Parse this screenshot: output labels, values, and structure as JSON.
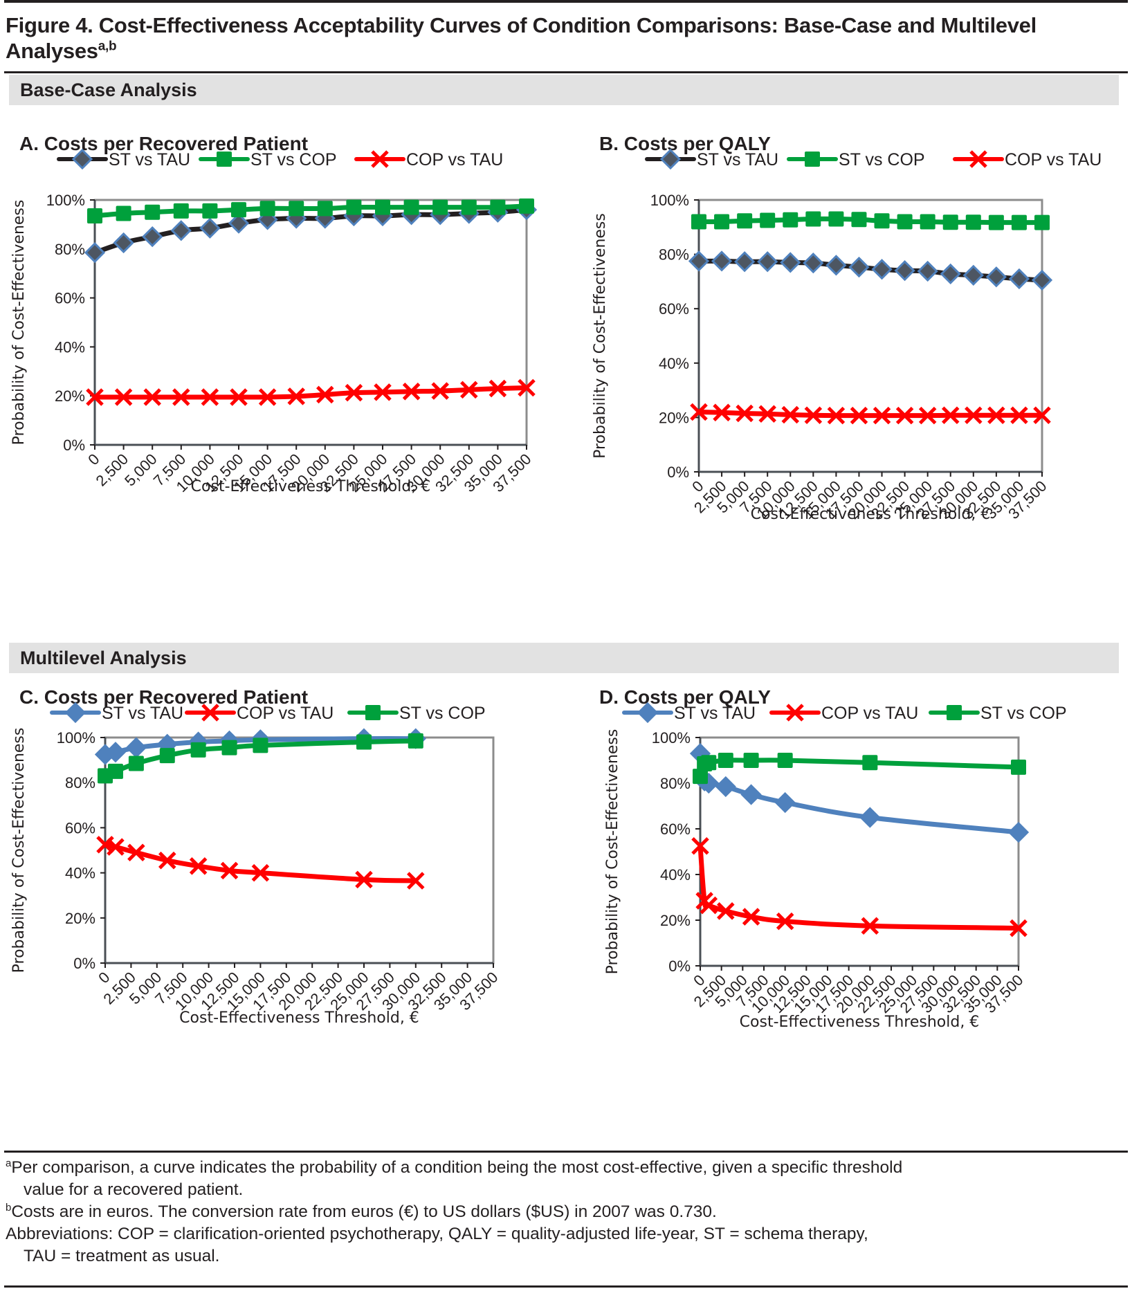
{
  "figure": {
    "title": "Figure 4. Cost-Effectiveness Acceptability Curves of Condition Comparisons: Base-Case and Multilevel Analyses",
    "title_superscript": "a,b"
  },
  "sections": [
    {
      "label": "Base-Case Analysis"
    },
    {
      "label": "Multilevel Analysis"
    }
  ],
  "colors": {
    "st_vs_tau_dark": "#231f20",
    "st_vs_tau_blue": "#4f81bd",
    "st_vs_cop": "#00a03c",
    "cop_vs_tau": "#ff0000",
    "marker_dark_fill": "#4d5662",
    "axis_frame": "#8c8c8c"
  },
  "footnotes": {
    "a_marker": "a",
    "a_text": "Per comparison, a curve indicates the probability of a condition being the most cost-effective, given a specific threshold",
    "a_text_cont": "value for a recovered patient.",
    "b_marker": "b",
    "b_text": "Costs are in euros. The conversion rate from euros (€) to US dollars ($US) in 2007 was 0.730.",
    "abbrev_text": "Abbreviations: COP = clarification-oriented psychotherapy, QALY = quality-adjusted life-year, ST = schema therapy,",
    "abbrev_text_cont": "TAU = treatment as usual."
  },
  "chart_data": [
    {
      "id": "A",
      "type": "line",
      "title": "A. Costs per Recovered Patient",
      "xlabel": "Cost-Effectiveness Threshold, €",
      "ylabel": "Probability of Cost-Effectiveness",
      "x_tick_labels": [
        "0",
        "2,500",
        "5,000",
        "7,500",
        "10,000",
        "12,500",
        "15,000",
        "17,500",
        "20,000",
        "22,500",
        "25,000",
        "27,500",
        "30,000",
        "32,500",
        "35,000",
        "37,500"
      ],
      "xlim": [
        0,
        37500
      ],
      "ylim": [
        0,
        100
      ],
      "y_ticks": [
        "0%",
        "20%",
        "40%",
        "60%",
        "80%",
        "100%"
      ],
      "grid": false,
      "legend_position": "top",
      "series": [
        {
          "name": "ST vs TAU",
          "color": "#231f20",
          "marker": "diamond",
          "marker_fill": "#4d5662",
          "marker_stroke": "#4f81bd",
          "x": [
            0,
            2500,
            5000,
            7500,
            10000,
            12500,
            15000,
            17500,
            20000,
            22500,
            25000,
            27500,
            30000,
            32500,
            35000,
            37500
          ],
          "values": [
            78.5,
            82.5,
            85,
            87.5,
            88.5,
            90.5,
            92,
            92.5,
            92.5,
            93.5,
            93.5,
            94,
            94,
            94.5,
            95,
            96
          ]
        },
        {
          "name": "ST vs COP",
          "color": "#00a03c",
          "marker": "square",
          "x": [
            0,
            2500,
            5000,
            7500,
            10000,
            12500,
            15000,
            17500,
            20000,
            22500,
            25000,
            27500,
            30000,
            32500,
            35000,
            37500
          ],
          "values": [
            93.5,
            94.5,
            95,
            95.5,
            95.5,
            96,
            96.5,
            96.5,
            96.5,
            97,
            97,
            97,
            97,
            97,
            97,
            97.5
          ]
        },
        {
          "name": "COP vs TAU",
          "color": "#ff0000",
          "marker": "x",
          "x": [
            0,
            2500,
            5000,
            7500,
            10000,
            12500,
            15000,
            17500,
            20000,
            22500,
            25000,
            27500,
            30000,
            32500,
            35000,
            37500
          ],
          "values": [
            19.5,
            19.5,
            19.5,
            19.5,
            19.5,
            19.5,
            19.5,
            19.8,
            20.5,
            21.3,
            21.5,
            21.8,
            22,
            22.5,
            23,
            23.3
          ]
        }
      ]
    },
    {
      "id": "B",
      "type": "line",
      "title": "B. Costs per QALY",
      "xlabel": "Cost-Effectiveness Threshold, €",
      "ylabel": "Probability of Cost-Effectiveness",
      "x_tick_labels": [
        "0",
        "2,500",
        "5,000",
        "7,500",
        "10,000",
        "12,500",
        "15,000",
        "17,500",
        "20,000",
        "22,500",
        "25,000",
        "27,500",
        "30,000",
        "32,500",
        "35,000",
        "37,500"
      ],
      "xlim": [
        0,
        37500
      ],
      "ylim": [
        0,
        100
      ],
      "y_ticks": [
        "0%",
        "20%",
        "40%",
        "60%",
        "80%",
        "100%"
      ],
      "grid": false,
      "legend_position": "top",
      "series": [
        {
          "name": "ST vs TAU",
          "color": "#231f20",
          "marker": "diamond",
          "marker_fill": "#4d5662",
          "marker_stroke": "#4f81bd",
          "x": [
            0,
            2500,
            5000,
            7500,
            10000,
            12500,
            15000,
            17500,
            20000,
            22500,
            25000,
            27500,
            30000,
            32500,
            35000,
            37500
          ],
          "values": [
            77.5,
            77.5,
            77.3,
            77.3,
            77,
            76.8,
            76,
            75.3,
            74.5,
            74,
            73.8,
            72.8,
            72.3,
            71.7,
            71,
            70.5
          ]
        },
        {
          "name": "ST vs COP",
          "color": "#00a03c",
          "marker": "square",
          "x": [
            0,
            2500,
            5000,
            7500,
            10000,
            12500,
            15000,
            17500,
            20000,
            22500,
            25000,
            27500,
            30000,
            32500,
            35000,
            37500
          ],
          "values": [
            92,
            92,
            92.3,
            92.5,
            92.7,
            93,
            93,
            92.8,
            92.3,
            92,
            92,
            91.8,
            91.8,
            91.7,
            91.7,
            91.7
          ]
        },
        {
          "name": "COP vs TAU",
          "color": "#ff0000",
          "marker": "x",
          "x": [
            0,
            2500,
            5000,
            7500,
            10000,
            12500,
            15000,
            17500,
            20000,
            22500,
            25000,
            27500,
            30000,
            32500,
            35000,
            37500
          ],
          "values": [
            22,
            21.8,
            21.5,
            21.3,
            21,
            20.8,
            20.7,
            20.7,
            20.7,
            20.7,
            20.7,
            20.8,
            20.8,
            20.8,
            20.8,
            20.8
          ]
        }
      ]
    },
    {
      "id": "C",
      "type": "line",
      "title": "C. Costs per Recovered Patient",
      "xlabel": "Cost-Effectiveness Threshold, €",
      "ylabel": "Probability of Cost-Effectiveness",
      "x_tick_labels": [
        "0",
        "2,500",
        "5,000",
        "7,500",
        "10,000",
        "12,500",
        "15,000",
        "17,500",
        "20,000",
        "22,500",
        "25,000",
        "27,500",
        "30,000",
        "32,500",
        "35,000",
        "37,500"
      ],
      "xlim": [
        0,
        37500
      ],
      "ylim": [
        0,
        100
      ],
      "y_ticks": [
        "0%",
        "20%",
        "40%",
        "60%",
        "80%",
        "100%"
      ],
      "grid": false,
      "legend_position": "top",
      "series": [
        {
          "name": "ST vs TAU",
          "color": "#4f81bd",
          "marker": "diamond",
          "x": [
            0,
            1000,
            3000,
            6000,
            9000,
            12000,
            15000,
            25000,
            30000
          ],
          "values": [
            92.5,
            93.5,
            95.5,
            97,
            98,
            98.5,
            99,
            99.5,
            99.5
          ]
        },
        {
          "name": "COP vs TAU",
          "color": "#ff0000",
          "marker": "x",
          "x": [
            0,
            1000,
            3000,
            6000,
            9000,
            12000,
            15000,
            25000,
            30000
          ],
          "values": [
            52.5,
            51.5,
            49,
            45.5,
            43,
            41,
            40,
            37,
            36.5
          ]
        },
        {
          "name": "ST vs COP",
          "color": "#00a03c",
          "marker": "square",
          "x": [
            0,
            1000,
            3000,
            6000,
            9000,
            12000,
            15000,
            25000,
            30000
          ],
          "values": [
            83,
            85,
            88.5,
            92,
            94.5,
            95.5,
            96.5,
            98,
            98.5
          ]
        }
      ]
    },
    {
      "id": "D",
      "type": "line",
      "title": "D. Costs per QALY",
      "xlabel": "Cost-Effectiveness Threshold, €",
      "ylabel": "Probability of Cost-Effectiveness",
      "x_tick_labels": [
        "0",
        "2,500",
        "5,000",
        "7,500",
        "10,000",
        "12,500",
        "15,000",
        "17,500",
        "20,000",
        "22,500",
        "25,000",
        "27,500",
        "30,000",
        "32,500",
        "35,000",
        "37,500"
      ],
      "xlim": [
        0,
        37500
      ],
      "ylim": [
        0,
        100
      ],
      "y_ticks": [
        "0%",
        "20%",
        "40%",
        "60%",
        "80%",
        "100%"
      ],
      "grid": false,
      "legend_position": "top",
      "series": [
        {
          "name": "ST vs TAU",
          "color": "#4f81bd",
          "marker": "diamond",
          "x": [
            0,
            500,
            1000,
            3000,
            6000,
            10000,
            20000,
            37500
          ],
          "values": [
            93,
            81,
            80,
            78.5,
            75,
            71.5,
            65,
            58.5
          ]
        },
        {
          "name": "COP vs TAU",
          "color": "#ff0000",
          "marker": "x",
          "x": [
            0,
            500,
            1000,
            3000,
            6000,
            10000,
            20000,
            37500
          ],
          "values": [
            52.5,
            28.5,
            26.5,
            24,
            21.5,
            19.5,
            17.5,
            16.5
          ]
        },
        {
          "name": "ST vs COP",
          "color": "#00a03c",
          "marker": "square",
          "x": [
            0,
            500,
            1000,
            3000,
            6000,
            10000,
            20000,
            37500
          ],
          "values": [
            83,
            88.5,
            89,
            90,
            90,
            90,
            89,
            87
          ]
        }
      ]
    }
  ]
}
